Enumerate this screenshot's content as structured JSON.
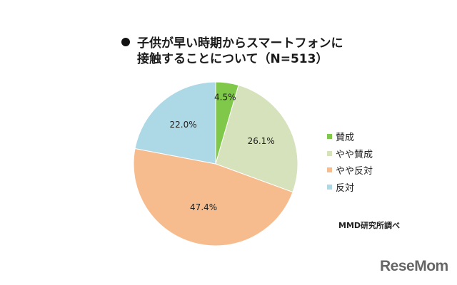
{
  "title": {
    "line1": "子供が早い時期からスマートフォンに",
    "line2": "接触することについて（N=513）"
  },
  "chart_data": {
    "type": "pie",
    "title": "子供が早い時期からスマートフォンに接触することについて（N=513）",
    "categories": [
      "賛成",
      "やや賛成",
      "やや反対",
      "反対"
    ],
    "values": [
      4.5,
      26.1,
      47.4,
      22.0
    ],
    "labels": [
      "4.5%",
      "26.1%",
      "47.4%",
      "22.0%"
    ],
    "colors": [
      "#7fc84a",
      "#d5e2bb",
      "#f6bc8e",
      "#add8e6"
    ],
    "start_angle": "12 o'clock, clockwise",
    "legend_position": "right"
  },
  "legend": {
    "items": [
      {
        "label": "賛成",
        "color": "#7fc84a"
      },
      {
        "label": "やや賛成",
        "color": "#d5e2bb"
      },
      {
        "label": "やや反対",
        "color": "#f6bc8e"
      },
      {
        "label": "反対",
        "color": "#add8e6"
      }
    ]
  },
  "source": "MMD研究所調べ",
  "logo": "ReseMom"
}
